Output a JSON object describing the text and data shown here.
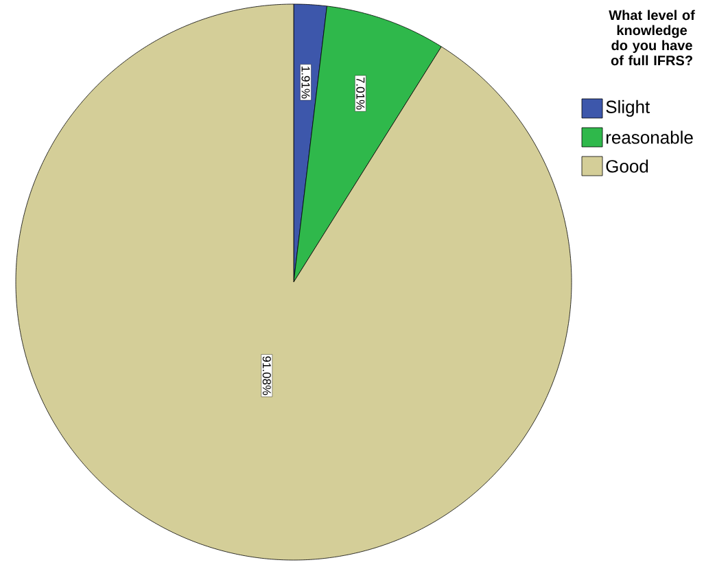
{
  "chart_data": {
    "type": "pie",
    "legend_title": "What  level of knowledge do you have of full IFRS?",
    "categories": [
      "Slight",
      "reasonable",
      "Good"
    ],
    "values": [
      1.91,
      7.01,
      91.08
    ],
    "value_labels": [
      "1.91%",
      "7.01%",
      "91.08%"
    ],
    "colors": [
      "#3d57ab",
      "#2fb84b",
      "#d4ce98"
    ],
    "legend": "top right"
  }
}
